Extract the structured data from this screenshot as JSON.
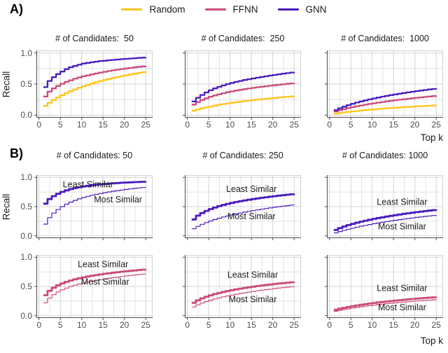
{
  "panel_a": {
    "label": "A)",
    "y_label": "Recall",
    "x_label": "Top k"
  },
  "panel_b": {
    "label": "B)",
    "y_label": "Recall",
    "x_label": "Top k"
  },
  "legend": {
    "items": [
      {
        "label": "Random",
        "color": "#FEC51E"
      },
      {
        "label": "FFNN",
        "color": "#CB4B78"
      },
      {
        "label": "GNN",
        "color": "#4A1CBE"
      }
    ]
  },
  "chart_data": {
    "type": "line",
    "line_style": "step-after",
    "x_label": "Top k",
    "y_label": "Recall",
    "x_values": [
      1,
      2,
      3,
      4,
      5,
      6,
      7,
      8,
      9,
      10,
      11,
      12,
      13,
      14,
      15,
      16,
      17,
      18,
      19,
      20,
      21,
      22,
      23,
      24,
      25
    ],
    "xlim": [
      -0.6,
      26.6
    ],
    "ylim": [
      -0.04,
      1.04
    ],
    "xticks": {
      "values": [
        0,
        5,
        10,
        15,
        20,
        25
      ],
      "labels": [
        "0",
        "5",
        "10",
        "15",
        "20",
        "25"
      ]
    },
    "yticks": {
      "values": [
        0,
        0.5,
        1
      ],
      "labels": [
        "0.0",
        "0.5",
        "1.0"
      ]
    },
    "grid": {
      "minor_x": [
        2.5,
        7.5,
        12.5,
        17.5,
        22.5
      ],
      "minor_y": [
        0.25,
        0.75
      ],
      "major_color": "#d3d3d3",
      "minor_color": "#e4e4e4",
      "border_color": "#d3d3d3"
    },
    "style": {
      "axis": "#4d4d4d",
      "tick_text": "#4d4d4d",
      "text": "#1a1a1a",
      "background": "#ffffff"
    },
    "colors": {
      "Random": "#FEC51E",
      "FFNN": "#CB4B78",
      "GNN": "#4A1CBE"
    },
    "panels": [
      {
        "panel": "A",
        "title": "# of Candidates:  50",
        "ytick_labels": true,
        "xtick_labels": true,
        "series": [
          {
            "name": "Random",
            "color": "#FEC51E",
            "width": 2.3,
            "values": [
              0.15,
              0.2,
              0.245,
              0.285,
              0.32,
              0.355,
              0.385,
              0.413,
              0.44,
              0.464,
              0.487,
              0.508,
              0.528,
              0.547,
              0.565,
              0.582,
              0.598,
              0.613,
              0.627,
              0.641,
              0.654,
              0.666,
              0.678,
              0.69,
              0.7
            ]
          },
          {
            "name": "FFNN",
            "color": "#CB4B78",
            "width": 2.3,
            "values": [
              0.3,
              0.38,
              0.43,
              0.47,
              0.505,
              0.535,
              0.56,
              0.585,
              0.605,
              0.625,
              0.64,
              0.655,
              0.67,
              0.684,
              0.697,
              0.709,
              0.72,
              0.731,
              0.741,
              0.75,
              0.759,
              0.768,
              0.776,
              0.784,
              0.792
            ]
          },
          {
            "name": "GNN",
            "color": "#4A1CBE",
            "width": 2.3,
            "values": [
              0.45,
              0.55,
              0.61,
              0.66,
              0.7,
              0.74,
              0.77,
              0.79,
              0.81,
              0.83,
              0.84,
              0.85,
              0.86,
              0.87,
              0.875,
              0.882,
              0.888,
              0.894,
              0.9,
              0.905,
              0.91,
              0.915,
              0.92,
              0.924,
              0.928
            ]
          }
        ],
        "annotations": []
      },
      {
        "panel": "A",
        "title": "# of Candidates:  250",
        "ytick_labels": false,
        "xtick_labels": true,
        "series": [
          {
            "name": "Random",
            "color": "#FEC51E",
            "width": 2.3,
            "values": [
              0.07,
              0.09,
              0.108,
              0.124,
              0.139,
              0.153,
              0.166,
              0.178,
              0.189,
              0.199,
              0.209,
              0.218,
              0.227,
              0.235,
              0.243,
              0.25,
              0.257,
              0.264,
              0.271,
              0.277,
              0.284,
              0.29,
              0.296,
              0.301,
              0.307
            ]
          },
          {
            "name": "FFNN",
            "color": "#CB4B78",
            "width": 2.3,
            "values": [
              0.17,
              0.21,
              0.245,
              0.272,
              0.296,
              0.317,
              0.336,
              0.353,
              0.368,
              0.382,
              0.395,
              0.407,
              0.418,
              0.428,
              0.438,
              0.448,
              0.457,
              0.465,
              0.473,
              0.481,
              0.489,
              0.496,
              0.503,
              0.51,
              0.517
            ]
          },
          {
            "name": "GNN",
            "color": "#4A1CBE",
            "width": 2.3,
            "values": [
              0.22,
              0.28,
              0.325,
              0.365,
              0.4,
              0.43,
              0.455,
              0.478,
              0.5,
              0.518,
              0.535,
              0.55,
              0.565,
              0.578,
              0.59,
              0.602,
              0.614,
              0.625,
              0.636,
              0.646,
              0.656,
              0.666,
              0.675,
              0.684,
              0.693
            ]
          }
        ],
        "annotations": []
      },
      {
        "panel": "A",
        "title": "# of Candidates:  1000",
        "ytick_labels": false,
        "xtick_labels": true,
        "series": [
          {
            "name": "Random",
            "color": "#FEC51E",
            "width": 2.3,
            "values": [
              0.025,
              0.035,
              0.044,
              0.052,
              0.06,
              0.067,
              0.074,
              0.081,
              0.087,
              0.093,
              0.099,
              0.105,
              0.11,
              0.115,
              0.12,
              0.125,
              0.129,
              0.133,
              0.137,
              0.141,
              0.145,
              0.148,
              0.152,
              0.155,
              0.158
            ]
          },
          {
            "name": "FFNN",
            "color": "#CB4B78",
            "width": 2.3,
            "values": [
              0.06,
              0.08,
              0.098,
              0.114,
              0.129,
              0.143,
              0.156,
              0.168,
              0.18,
              0.191,
              0.202,
              0.212,
              0.222,
              0.231,
              0.24,
              0.248,
              0.256,
              0.264,
              0.272,
              0.279,
              0.286,
              0.293,
              0.3,
              0.307,
              0.313
            ]
          },
          {
            "name": "GNN",
            "color": "#4A1CBE",
            "width": 2.3,
            "values": [
              0.08,
              0.11,
              0.137,
              0.161,
              0.183,
              0.203,
              0.221,
              0.238,
              0.254,
              0.269,
              0.283,
              0.297,
              0.31,
              0.322,
              0.334,
              0.345,
              0.356,
              0.366,
              0.376,
              0.386,
              0.395,
              0.404,
              0.413,
              0.421,
              0.43
            ]
          }
        ],
        "annotations": []
      },
      {
        "panel": "B",
        "title": "# of Candidates: 50",
        "ytick_labels": true,
        "xtick_labels": false,
        "series": [
          {
            "name": "Most Similar",
            "color": "#4A1CBE",
            "width": 1.2,
            "values": [
              0.2,
              0.31,
              0.39,
              0.45,
              0.5,
              0.542,
              0.577,
              0.607,
              0.633,
              0.656,
              0.676,
              0.694,
              0.71,
              0.725,
              0.739,
              0.752,
              0.764,
              0.775,
              0.785,
              0.795,
              0.804,
              0.812,
              0.82,
              0.828,
              0.835
            ]
          },
          {
            "name": "Least Similar",
            "color": "#4A1CBE",
            "width": 2.8,
            "values": [
              0.55,
              0.63,
              0.68,
              0.72,
              0.752,
              0.778,
              0.8,
              0.818,
              0.833,
              0.846,
              0.857,
              0.867,
              0.875,
              0.883,
              0.889,
              0.895,
              0.9,
              0.905,
              0.909,
              0.913,
              0.917,
              0.92,
              0.923,
              0.926,
              0.929
            ]
          }
        ],
        "annotations": [
          {
            "text": "Least Similar",
            "x": 11.5,
            "y": 0.88
          },
          {
            "text": "Most Similar",
            "x": 18.5,
            "y": 0.62
          }
        ]
      },
      {
        "panel": "B",
        "title": "# of Candidates: 250",
        "ytick_labels": false,
        "xtick_labels": false,
        "series": [
          {
            "name": "Most Similar",
            "color": "#4A1CBE",
            "width": 1.2,
            "values": [
              0.12,
              0.16,
              0.196,
              0.227,
              0.254,
              0.279,
              0.301,
              0.322,
              0.341,
              0.358,
              0.375,
              0.39,
              0.405,
              0.419,
              0.432,
              0.444,
              0.456,
              0.467,
              0.478,
              0.489,
              0.499,
              0.508,
              0.517,
              0.526,
              0.535
            ]
          },
          {
            "name": "Least Similar",
            "color": "#4A1CBE",
            "width": 2.8,
            "values": [
              0.28,
              0.345,
              0.39,
              0.427,
              0.458,
              0.485,
              0.508,
              0.528,
              0.547,
              0.564,
              0.579,
              0.593,
              0.606,
              0.618,
              0.63,
              0.641,
              0.651,
              0.661,
              0.67,
              0.679,
              0.688,
              0.696,
              0.704,
              0.711,
              0.718
            ]
          }
        ],
        "annotations": [
          {
            "text": "Least Similar",
            "x": 15,
            "y": 0.8
          },
          {
            "text": "Most Similar",
            "x": 15,
            "y": 0.33
          }
        ]
      },
      {
        "panel": "B",
        "title": "# of Candidates: 1000",
        "ytick_labels": false,
        "xtick_labels": false,
        "series": [
          {
            "name": "Most Similar",
            "color": "#4A1CBE",
            "width": 1.2,
            "values": [
              0.05,
              0.073,
              0.094,
              0.113,
              0.131,
              0.148,
              0.164,
              0.179,
              0.193,
              0.207,
              0.22,
              0.232,
              0.244,
              0.255,
              0.266,
              0.277,
              0.287,
              0.297,
              0.306,
              0.315,
              0.324,
              0.332,
              0.34,
              0.348,
              0.356
            ]
          },
          {
            "name": "Least Similar",
            "color": "#4A1CBE",
            "width": 2.8,
            "values": [
              0.1,
              0.132,
              0.159,
              0.183,
              0.204,
              0.224,
              0.242,
              0.259,
              0.275,
              0.29,
              0.304,
              0.317,
              0.33,
              0.342,
              0.354,
              0.365,
              0.376,
              0.386,
              0.396,
              0.405,
              0.414,
              0.423,
              0.432,
              0.44,
              0.448
            ]
          }
        ],
        "annotations": [
          {
            "text": "Least Similar",
            "x": 17,
            "y": 0.58
          },
          {
            "text": "Most Similar",
            "x": 17,
            "y": 0.16
          }
        ]
      },
      {
        "panel": "B",
        "title": "",
        "ytick_labels": true,
        "xtick_labels": true,
        "series": [
          {
            "name": "Most Similar",
            "color": "#CB4B78",
            "width": 1.2,
            "values": [
              0.22,
              0.3,
              0.36,
              0.407,
              0.443,
              0.473,
              0.499,
              0.521,
              0.541,
              0.559,
              0.575,
              0.59,
              0.604,
              0.617,
              0.629,
              0.64,
              0.651,
              0.661,
              0.671,
              0.68,
              0.689,
              0.697,
              0.705,
              0.713,
              0.72
            ]
          },
          {
            "name": "Least Similar",
            "color": "#CB4B78",
            "width": 2.8,
            "values": [
              0.35,
              0.425,
              0.478,
              0.52,
              0.552,
              0.579,
              0.602,
              0.622,
              0.64,
              0.656,
              0.67,
              0.683,
              0.695,
              0.706,
              0.717,
              0.727,
              0.736,
              0.745,
              0.753,
              0.761,
              0.768,
              0.775,
              0.782,
              0.788,
              0.794
            ]
          }
        ],
        "annotations": [
          {
            "text": "Least Similar",
            "x": 15,
            "y": 0.88
          },
          {
            "text": "Most Similar",
            "x": 15.5,
            "y": 0.58
          }
        ]
      },
      {
        "panel": "B",
        "title": "",
        "ytick_labels": false,
        "xtick_labels": true,
        "series": [
          {
            "name": "Most Similar",
            "color": "#CB4B78",
            "width": 1.2,
            "values": [
              0.15,
              0.186,
              0.216,
              0.242,
              0.265,
              0.286,
              0.305,
              0.322,
              0.338,
              0.353,
              0.367,
              0.38,
              0.392,
              0.404,
              0.415,
              0.426,
              0.436,
              0.446,
              0.455,
              0.464,
              0.472,
              0.48,
              0.488,
              0.496,
              0.503
            ]
          },
          {
            "name": "Least Similar",
            "color": "#CB4B78",
            "width": 2.8,
            "values": [
              0.22,
              0.262,
              0.296,
              0.324,
              0.348,
              0.37,
              0.389,
              0.406,
              0.422,
              0.437,
              0.45,
              0.463,
              0.475,
              0.486,
              0.497,
              0.507,
              0.516,
              0.525,
              0.534,
              0.542,
              0.55,
              0.558,
              0.565,
              0.572,
              0.579
            ]
          }
        ],
        "annotations": [
          {
            "text": "Least Similar",
            "x": 15.3,
            "y": 0.7
          },
          {
            "text": "Most Similar",
            "x": 15.3,
            "y": 0.28
          }
        ]
      },
      {
        "panel": "B",
        "title": "",
        "ytick_labels": false,
        "xtick_labels": true,
        "series": [
          {
            "name": "Most Similar",
            "color": "#CB4B78",
            "width": 1.2,
            "values": [
              0.075,
              0.091,
              0.105,
              0.118,
              0.13,
              0.141,
              0.152,
              0.162,
              0.171,
              0.18,
              0.189,
              0.197,
              0.205,
              0.212,
              0.219,
              0.226,
              0.233,
              0.239,
              0.245,
              0.251,
              0.257,
              0.262,
              0.268,
              0.273,
              0.278
            ]
          },
          {
            "name": "Least Similar",
            "color": "#CB4B78",
            "width": 2.8,
            "values": [
              0.1,
              0.118,
              0.134,
              0.149,
              0.162,
              0.175,
              0.186,
              0.197,
              0.207,
              0.217,
              0.226,
              0.234,
              0.242,
              0.25,
              0.258,
              0.265,
              0.272,
              0.279,
              0.285,
              0.291,
              0.297,
              0.303,
              0.309,
              0.314,
              0.32
            ]
          }
        ],
        "annotations": [
          {
            "text": "Least Similar",
            "x": 17,
            "y": 0.47
          },
          {
            "text": "Most Similar",
            "x": 17,
            "y": 0.14
          }
        ]
      }
    ]
  }
}
